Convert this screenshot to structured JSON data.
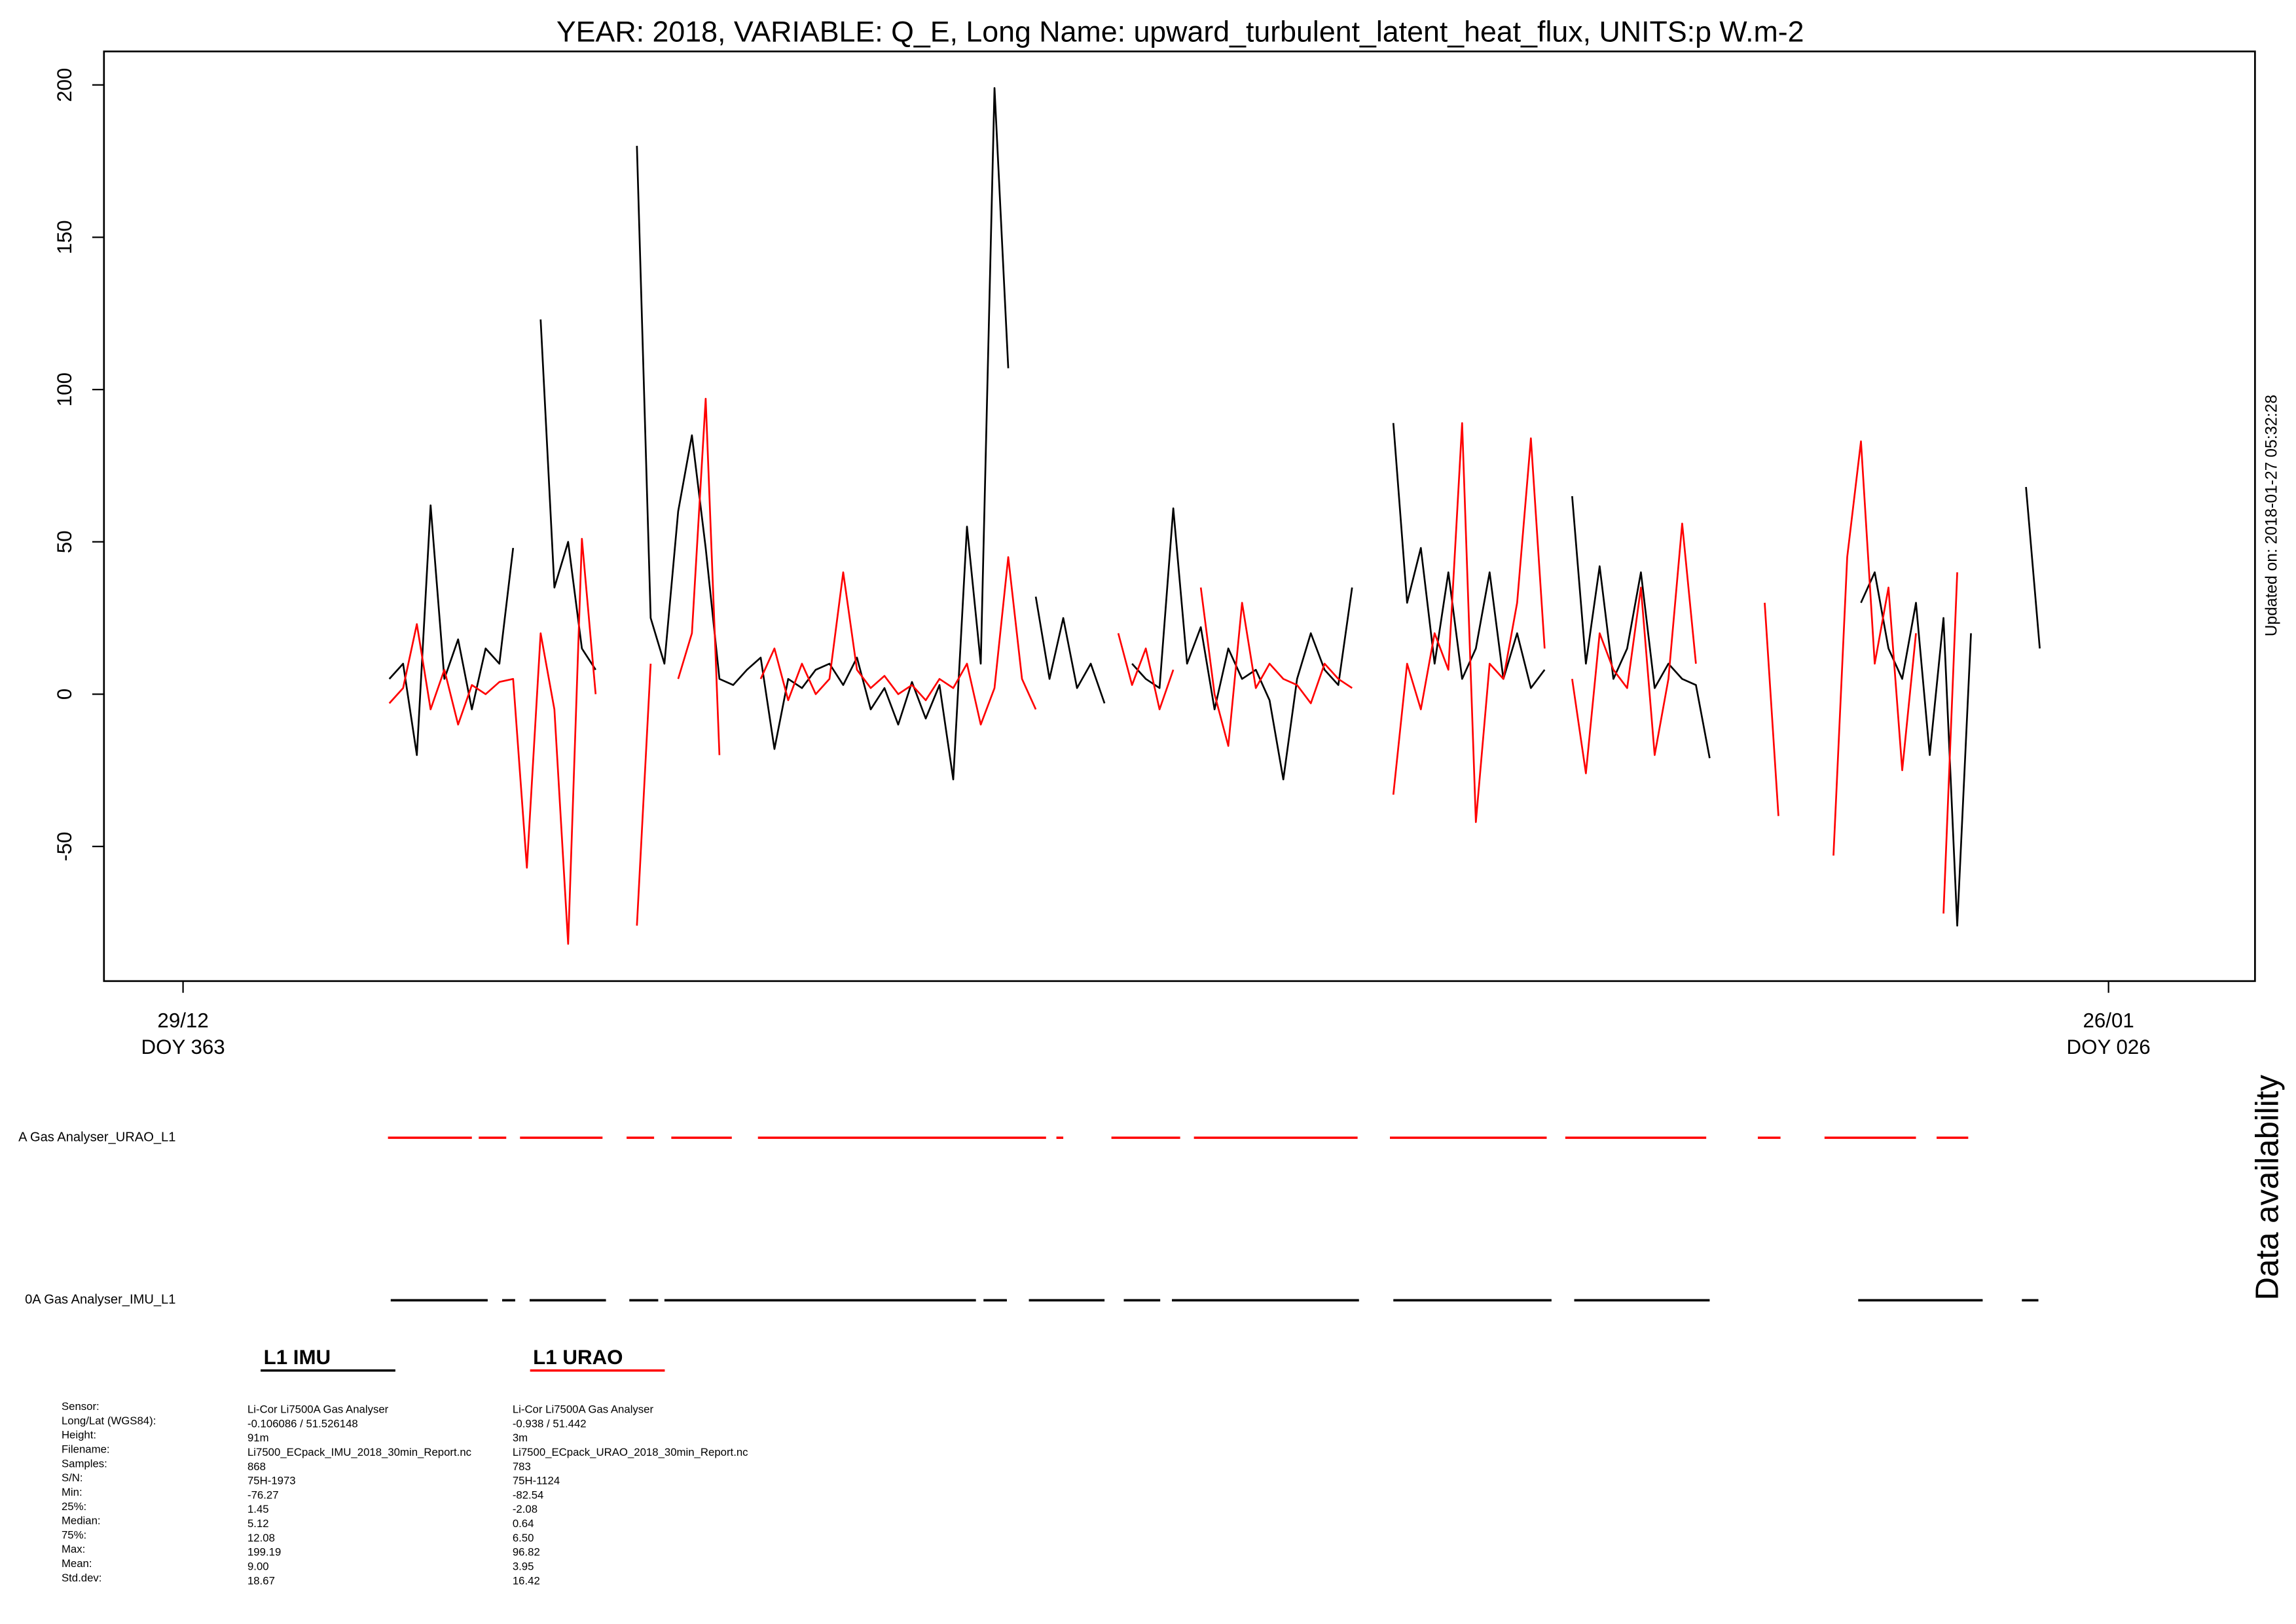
{
  "chart_data": {
    "type": "line",
    "title": "YEAR: 2018, VARIABLE: Q_E, Long Name: upward_turbulent_latent_heat_flux, UNITS:p W.m-2",
    "updated": "Updated on: 2018-01-27 05:32:28",
    "xlim": [
      -1.15,
      30.13
    ],
    "xticks": [
      {
        "value": 0,
        "label": "29/12",
        "sublabel": "DOY 363"
      },
      {
        "value": 28,
        "label": "26/01",
        "sublabel": "DOY 026"
      }
    ],
    "ylim": [
      -94.2,
      211
    ],
    "yticks": [
      -50,
      0,
      50,
      100,
      150,
      200
    ],
    "x": [
      3.0,
      3.2,
      3.4,
      3.6,
      3.8,
      4.0,
      4.2,
      4.4,
      4.6,
      4.8,
      5.0,
      5.2,
      5.4,
      5.6,
      5.8,
      6.0,
      6.2,
      6.4,
      6.6,
      6.8,
      7.0,
      7.2,
      7.4,
      7.6,
      7.8,
      8.0,
      8.2,
      8.4,
      8.6,
      8.8,
      9.0,
      9.2,
      9.4,
      9.6,
      9.8,
      10.0,
      10.2,
      10.4,
      10.6,
      10.8,
      11.0,
      11.2,
      11.4,
      11.6,
      11.8,
      12.0,
      12.2,
      12.4,
      12.6,
      12.8,
      13.0,
      13.2,
      13.4,
      13.6,
      13.8,
      14.0,
      14.2,
      14.4,
      14.6,
      14.8,
      15.0,
      15.2,
      15.4,
      15.6,
      15.8,
      16.0,
      16.2,
      16.4,
      16.6,
      16.8,
      17.0,
      17.2,
      17.4,
      17.6,
      17.8,
      18.0,
      18.2,
      18.4,
      18.6,
      18.8,
      19.0,
      19.2,
      19.4,
      19.6,
      19.8,
      20.0,
      20.2,
      20.4,
      20.6,
      20.8,
      21.0,
      21.2,
      21.4,
      21.6,
      21.8,
      22.0,
      22.2,
      22.4,
      22.6,
      22.8,
      23.0,
      23.2,
      23.4,
      23.6,
      23.8,
      24.0,
      24.2,
      24.4,
      24.6,
      24.8,
      25.0,
      25.2,
      25.4,
      25.6,
      25.8,
      26.0,
      26.2,
      26.4,
      26.6,
      26.8,
      27.0
    ],
    "series": [
      {
        "name": "L1 IMU",
        "color": "#000000",
        "values": [
          5,
          10,
          -20,
          62,
          5,
          18,
          -5,
          15,
          10,
          48,
          null,
          123,
          35,
          50,
          15,
          8,
          null,
          null,
          180,
          25,
          10,
          60,
          85,
          48,
          5,
          3,
          8,
          12,
          -18,
          5,
          2,
          8,
          10,
          3,
          12,
          -5,
          2,
          -10,
          4,
          -8,
          3,
          -28,
          55,
          10,
          199,
          107,
          null,
          32,
          5,
          25,
          2,
          10,
          -3,
          null,
          10,
          5,
          2,
          61,
          10,
          22,
          -5,
          15,
          5,
          8,
          -2,
          -28,
          5,
          20,
          8,
          3,
          35,
          null,
          null,
          89,
          30,
          48,
          10,
          40,
          5,
          15,
          40,
          5,
          20,
          2,
          8,
          null,
          65,
          10,
          42,
          5,
          15,
          40,
          2,
          10,
          5,
          3,
          -21,
          null,
          null,
          null,
          null,
          null,
          null,
          null,
          null,
          null,
          null,
          30,
          40,
          15,
          5,
          30,
          -20,
          25,
          -76,
          20,
          null,
          null,
          null,
          68,
          15
        ]
      },
      {
        "name": "L1 URAO",
        "color": "#ff0000",
        "values": [
          -3,
          2,
          23,
          -5,
          8,
          -10,
          3,
          0,
          4,
          5,
          -57,
          20,
          -5,
          -82,
          51,
          0,
          null,
          null,
          -76,
          10,
          null,
          5,
          20,
          97,
          -20,
          null,
          null,
          5,
          15,
          -2,
          10,
          0,
          5,
          40,
          8,
          2,
          6,
          0,
          3,
          -2,
          5,
          2,
          10,
          -10,
          2,
          45,
          5,
          -5,
          null,
          null,
          null,
          null,
          null,
          20,
          3,
          15,
          -5,
          8,
          null,
          35,
          0,
          -17,
          30,
          2,
          10,
          5,
          3,
          -3,
          10,
          5,
          2,
          null,
          null,
          -33,
          10,
          -5,
          20,
          8,
          89,
          -42,
          10,
          5,
          30,
          84,
          15,
          null,
          5,
          -26,
          20,
          8,
          2,
          35,
          -20,
          5,
          56,
          10,
          null,
          null,
          null,
          null,
          30,
          -40,
          null,
          null,
          null,
          -53,
          45,
          83,
          10,
          35,
          -25,
          20,
          null,
          -72,
          40,
          null,
          null,
          null,
          null,
          null,
          null
        ]
      }
    ],
    "availability_title": "Data availability",
    "availability": [
      {
        "label": "A Gas Analyser_URAO_L1",
        "color": "#ff0000",
        "segments": [
          [
            2.98,
            4.2
          ],
          [
            4.3,
            4.7
          ],
          [
            4.9,
            6.1
          ],
          [
            6.45,
            6.85
          ],
          [
            7.1,
            7.98
          ],
          [
            8.36,
            12.55
          ],
          [
            12.7,
            12.8
          ],
          [
            13.5,
            14.5
          ],
          [
            14.7,
            17.08
          ],
          [
            17.55,
            19.83
          ],
          [
            20.1,
            22.15
          ],
          [
            22.9,
            23.23
          ],
          [
            23.87,
            25.2
          ],
          [
            25.5,
            25.96
          ]
        ]
      },
      {
        "label": "0A Gas Analyser_IMU_L1",
        "color": "#000000",
        "segments": [
          [
            3.02,
            4.43
          ],
          [
            4.64,
            4.83
          ],
          [
            5.04,
            6.15
          ],
          [
            6.49,
            6.91
          ],
          [
            7.0,
            11.53
          ],
          [
            11.64,
            11.98
          ],
          [
            12.3,
            13.4
          ],
          [
            13.68,
            14.21
          ],
          [
            14.38,
            17.1
          ],
          [
            17.6,
            19.9
          ],
          [
            20.23,
            22.2
          ],
          [
            24.36,
            26.17
          ],
          [
            26.74,
            26.98
          ]
        ]
      }
    ],
    "stats": {
      "labels": [
        "Sensor:",
        "Long/Lat (WGS84):",
        "Height:",
        "Filename:",
        "Samples:",
        "S/N:",
        "Min:",
        "25%:",
        "Median:",
        "75%:",
        "Max:",
        "Mean:",
        "Std.dev:"
      ],
      "columns": [
        [
          "Li-Cor Li7500A Gas Analyser",
          "-0.106086 / 51.526148",
          "91m",
          "Li7500_ECpack_IMU_2018_30min_Report.nc",
          "868",
          "75H-1973",
          "-76.27",
          "1.45",
          "5.12",
          "12.08",
          "199.19",
          "9.00",
          "18.67"
        ],
        [
          "Li-Cor Li7500A Gas Analyser",
          "-0.938 / 51.442",
          "3m",
          "Li7500_ECpack_URAO_2018_30min_Report.nc",
          "783",
          "75H-1124",
          "-82.54",
          "-2.08",
          "0.64",
          "6.50",
          "96.82",
          "3.95",
          "16.42"
        ]
      ]
    }
  }
}
